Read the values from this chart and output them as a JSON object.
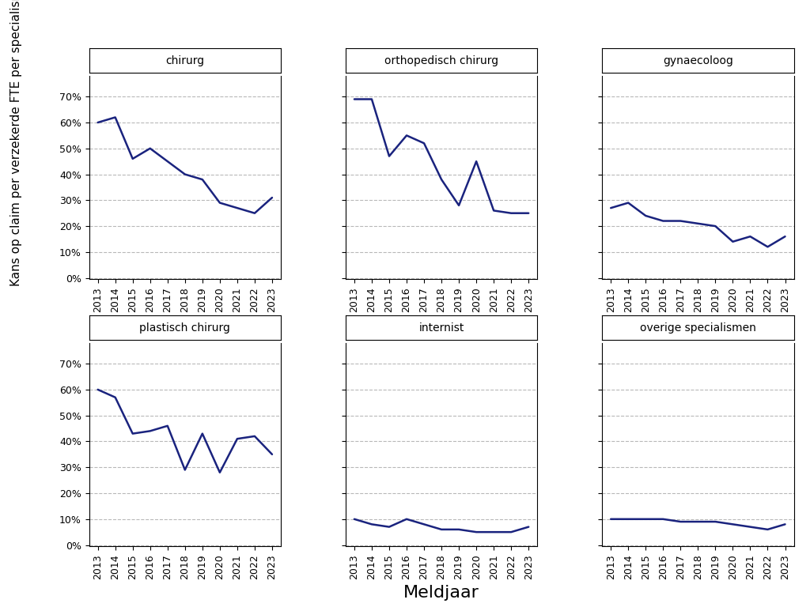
{
  "years": [
    2013,
    2014,
    2015,
    2016,
    2017,
    2018,
    2019,
    2020,
    2021,
    2022,
    2023
  ],
  "subplots": [
    {
      "title": "chirurg",
      "values": [
        0.6,
        0.62,
        0.46,
        0.5,
        0.45,
        0.4,
        0.38,
        0.29,
        0.27,
        0.25,
        0.31
      ]
    },
    {
      "title": "orthopedisch chirurg",
      "values": [
        0.69,
        0.69,
        0.47,
        0.55,
        0.52,
        0.38,
        0.28,
        0.45,
        0.26,
        0.25,
        0.25
      ]
    },
    {
      "title": "gynaecoloog",
      "values": [
        0.27,
        0.29,
        0.24,
        0.22,
        0.22,
        0.21,
        0.2,
        0.14,
        0.16,
        0.12,
        0.16
      ]
    },
    {
      "title": "plastisch chirurg",
      "values": [
        0.6,
        0.57,
        0.43,
        0.44,
        0.46,
        0.29,
        0.43,
        0.28,
        0.41,
        0.42,
        0.35
      ]
    },
    {
      "title": "internist",
      "values": [
        0.1,
        0.08,
        0.07,
        0.1,
        0.08,
        0.06,
        0.06,
        0.05,
        0.05,
        0.05,
        0.07
      ]
    },
    {
      "title": "overige specialismen",
      "values": [
        0.1,
        0.1,
        0.1,
        0.1,
        0.09,
        0.09,
        0.09,
        0.08,
        0.07,
        0.06,
        0.08
      ]
    }
  ],
  "line_color": "#1a237e",
  "line_width": 1.8,
  "background_color": "#ffffff",
  "grid_color": "#b8b8b8",
  "ylabel": "Kans op claim per verzekerde FTE per specialisme",
  "xlabel": "Meldjaar",
  "yticks": [
    0.0,
    0.1,
    0.2,
    0.3,
    0.4,
    0.5,
    0.6,
    0.7
  ],
  "ytick_labels": [
    "0%",
    "10%",
    "20%",
    "30%",
    "40%",
    "50%",
    "60%",
    "70%"
  ],
  "title_fontsize": 10,
  "ylabel_fontsize": 11,
  "xlabel_fontsize": 16,
  "tick_fontsize": 9,
  "strip_facecolor": "#ffffff",
  "strip_edgecolor": "#000000"
}
